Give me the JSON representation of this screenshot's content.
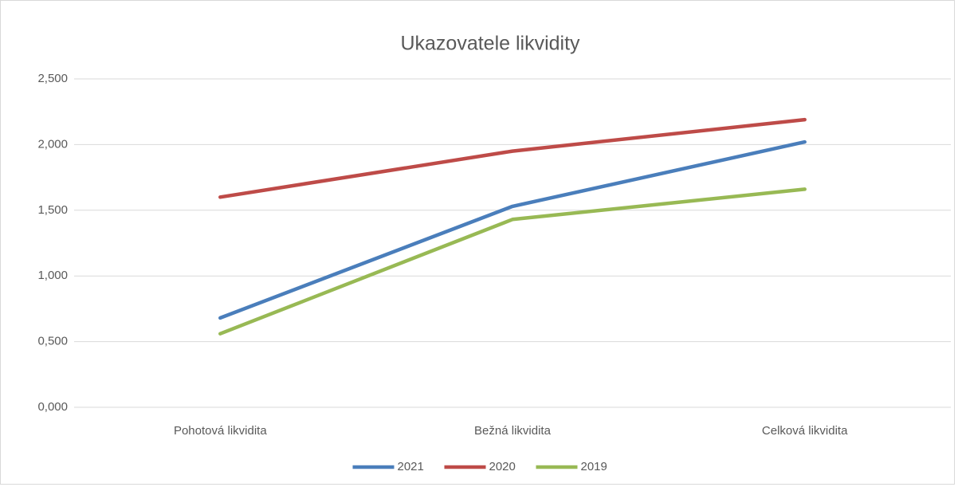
{
  "chart_data": {
    "type": "line",
    "title": "Ukazovatele likvidity",
    "categories": [
      "Pohotová likvidita",
      "Bežná likvidita",
      "Celková likvidita"
    ],
    "series": [
      {
        "name": "2021",
        "color": "#4a7ebb",
        "values": [
          0.68,
          1.53,
          2.02
        ]
      },
      {
        "name": "2020",
        "color": "#be4b48",
        "values": [
          1.6,
          1.95,
          2.19
        ]
      },
      {
        "name": "2019",
        "color": "#98b954",
        "values": [
          0.56,
          1.43,
          1.66
        ]
      }
    ],
    "ylim": [
      0,
      2.5
    ],
    "yticks": [
      {
        "value": 0,
        "label": "0,000"
      },
      {
        "value": 0.5,
        "label": "0,500"
      },
      {
        "value": 1,
        "label": "1,000"
      },
      {
        "value": 1.5,
        "label": "1,500"
      },
      {
        "value": 2,
        "label": "2,000"
      },
      {
        "value": 2.5,
        "label": "2,500"
      }
    ],
    "grid": true,
    "legend": "bottom"
  }
}
